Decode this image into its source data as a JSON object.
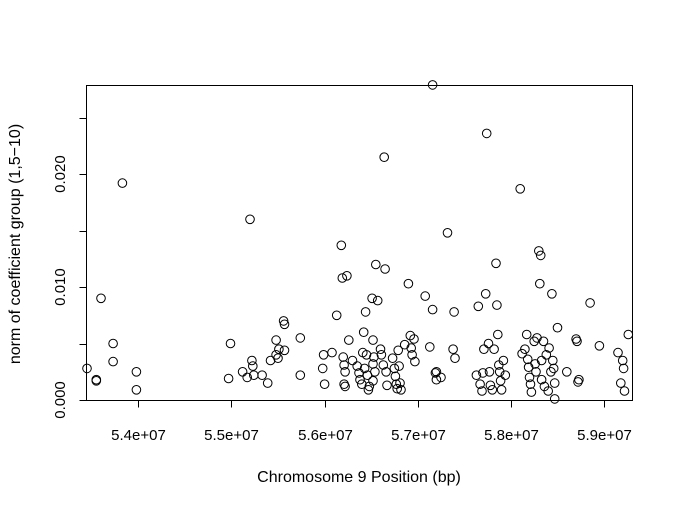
{
  "chart_data": {
    "type": "scatter",
    "title": "",
    "xlabel": "Chromosome 9 Position (bp)",
    "ylabel": "norm of coefficient group (1,5−10)",
    "xlim": [
      53450000,
      59300000
    ],
    "ylim": [
      0.0,
      0.0278
    ],
    "x_ticks": [
      54000000,
      55000000,
      56000000,
      57000000,
      58000000,
      59000000
    ],
    "x_tick_labels": [
      "5.4e+07",
      "5.5e+07",
      "5.6e+07",
      "5.7e+07",
      "5.8e+07",
      "5.9e+07"
    ],
    "y_ticks": [
      0.0,
      0.01,
      0.02
    ],
    "y_tick_labels": [
      "0.000",
      "0.010",
      "0.020"
    ],
    "y_minor_ticks": [
      0.005,
      0.015,
      0.025
    ],
    "grid": false,
    "legend": "none",
    "marker": "open-circle",
    "color": "#000000",
    "points": [
      [
        53450000,
        0.0028
      ],
      [
        53550000,
        0.0018
      ],
      [
        53550000,
        0.0017
      ],
      [
        53600000,
        0.009
      ],
      [
        53730000,
        0.005
      ],
      [
        53730000,
        0.0034
      ],
      [
        53830000,
        0.0192
      ],
      [
        53980000,
        0.0025
      ],
      [
        53980000,
        0.0009
      ],
      [
        54970000,
        0.0019
      ],
      [
        54990000,
        0.005
      ],
      [
        55120000,
        0.0025
      ],
      [
        55170000,
        0.002
      ],
      [
        55200000,
        0.016
      ],
      [
        55220000,
        0.0035
      ],
      [
        55230000,
        0.003
      ],
      [
        55240000,
        0.0022
      ],
      [
        55330000,
        0.0022
      ],
      [
        55390000,
        0.0015
      ],
      [
        55420000,
        0.0035
      ],
      [
        55480000,
        0.0053
      ],
      [
        55480000,
        0.004
      ],
      [
        55510000,
        0.0045
      ],
      [
        55500000,
        0.0037
      ],
      [
        55560000,
        0.007
      ],
      [
        55570000,
        0.0067
      ],
      [
        55570000,
        0.0044
      ],
      [
        55740000,
        0.0055
      ],
      [
        55740000,
        0.0022
      ],
      [
        55980000,
        0.0028
      ],
      [
        55990000,
        0.004
      ],
      [
        56000000,
        0.0014
      ],
      [
        56080000,
        0.0042
      ],
      [
        56130000,
        0.0075
      ],
      [
        56180000,
        0.0137
      ],
      [
        56190000,
        0.0108
      ],
      [
        56200000,
        0.0038
      ],
      [
        56210000,
        0.0031
      ],
      [
        56220000,
        0.0025
      ],
      [
        56210000,
        0.0014
      ],
      [
        56220000,
        0.0012
      ],
      [
        56240000,
        0.011
      ],
      [
        56260000,
        0.0053
      ],
      [
        56300000,
        0.0035
      ],
      [
        56350000,
        0.003
      ],
      [
        56370000,
        0.0024
      ],
      [
        56380000,
        0.0018
      ],
      [
        56400000,
        0.0014
      ],
      [
        56410000,
        0.0042
      ],
      [
        56420000,
        0.006
      ],
      [
        56440000,
        0.0078
      ],
      [
        56450000,
        0.004
      ],
      [
        56430000,
        0.0028
      ],
      [
        56460000,
        0.0022
      ],
      [
        56480000,
        0.0012
      ],
      [
        56470000,
        0.0009
      ],
      [
        56510000,
        0.009
      ],
      [
        56520000,
        0.0053
      ],
      [
        56530000,
        0.0038
      ],
      [
        56520000,
        0.0032
      ],
      [
        56540000,
        0.0025
      ],
      [
        56520000,
        0.0017
      ],
      [
        56550000,
        0.012
      ],
      [
        56570000,
        0.0088
      ],
      [
        56600000,
        0.0045
      ],
      [
        56610000,
        0.004
      ],
      [
        56630000,
        0.0031
      ],
      [
        56640000,
        0.0215
      ],
      [
        56650000,
        0.0116
      ],
      [
        56660000,
        0.0025
      ],
      [
        56670000,
        0.0013
      ],
      [
        56730000,
        0.0037
      ],
      [
        56750000,
        0.0028
      ],
      [
        56760000,
        0.0021
      ],
      [
        56770000,
        0.0014
      ],
      [
        56780000,
        0.001
      ],
      [
        56790000,
        0.0044
      ],
      [
        56800000,
        0.003
      ],
      [
        56810000,
        0.0015
      ],
      [
        56820000,
        0.0009
      ],
      [
        56860000,
        0.0049
      ],
      [
        56900000,
        0.0103
      ],
      [
        56920000,
        0.0057
      ],
      [
        56930000,
        0.0046
      ],
      [
        56940000,
        0.004
      ],
      [
        56960000,
        0.0054
      ],
      [
        56970000,
        0.0034
      ],
      [
        57080000,
        0.0092
      ],
      [
        57130000,
        0.0047
      ],
      [
        57160000,
        0.0279
      ],
      [
        57160000,
        0.008
      ],
      [
        57190000,
        0.0024
      ],
      [
        57200000,
        0.0018
      ],
      [
        57200000,
        0.0025
      ],
      [
        57250000,
        0.002
      ],
      [
        57320000,
        0.0148
      ],
      [
        57380000,
        0.0045
      ],
      [
        57390000,
        0.0078
      ],
      [
        57400000,
        0.0037
      ],
      [
        57630000,
        0.0022
      ],
      [
        57650000,
        0.0083
      ],
      [
        57670000,
        0.0014
      ],
      [
        57690000,
        0.0008
      ],
      [
        57700000,
        0.0024
      ],
      [
        57710000,
        0.0045
      ],
      [
        57730000,
        0.0094
      ],
      [
        57740000,
        0.0236
      ],
      [
        57760000,
        0.005
      ],
      [
        57770000,
        0.0025
      ],
      [
        57780000,
        0.0013
      ],
      [
        57800000,
        0.0009
      ],
      [
        57820000,
        0.0045
      ],
      [
        57840000,
        0.0121
      ],
      [
        57850000,
        0.0084
      ],
      [
        57860000,
        0.0058
      ],
      [
        57870000,
        0.0031
      ],
      [
        57880000,
        0.0025
      ],
      [
        57890000,
        0.0017
      ],
      [
        57900000,
        0.0009
      ],
      [
        57920000,
        0.0035
      ],
      [
        57940000,
        0.0022
      ],
      [
        58100000,
        0.0187
      ],
      [
        58120000,
        0.0041
      ],
      [
        58150000,
        0.0045
      ],
      [
        58170000,
        0.0058
      ],
      [
        58180000,
        0.0036
      ],
      [
        58190000,
        0.0029
      ],
      [
        58200000,
        0.002
      ],
      [
        58210000,
        0.0014
      ],
      [
        58220000,
        0.0007
      ],
      [
        58250000,
        0.0052
      ],
      [
        58260000,
        0.0032
      ],
      [
        58270000,
        0.0025
      ],
      [
        58280000,
        0.0055
      ],
      [
        58300000,
        0.0132
      ],
      [
        58310000,
        0.0103
      ],
      [
        58320000,
        0.0128
      ],
      [
        58330000,
        0.0035
      ],
      [
        58330000,
        0.0018
      ],
      [
        58350000,
        0.0052
      ],
      [
        58360000,
        0.0012
      ],
      [
        58380000,
        0.004
      ],
      [
        58400000,
        0.0008
      ],
      [
        58410000,
        0.0046
      ],
      [
        58430000,
        0.0025
      ],
      [
        58440000,
        0.0094
      ],
      [
        58450000,
        0.0035
      ],
      [
        58460000,
        0.0028
      ],
      [
        58470000,
        0.0015
      ],
      [
        58470000,
        0.0001
      ],
      [
        58500000,
        0.0064
      ],
      [
        58600000,
        0.0025
      ],
      [
        58700000,
        0.0054
      ],
      [
        58710000,
        0.0052
      ],
      [
        58720000,
        0.0016
      ],
      [
        58730000,
        0.0018
      ],
      [
        58850000,
        0.0086
      ],
      [
        58950000,
        0.0048
      ],
      [
        59150000,
        0.0042
      ],
      [
        59180000,
        0.0015
      ],
      [
        59200000,
        0.0035
      ],
      [
        59210000,
        0.0028
      ],
      [
        59220000,
        0.0008
      ],
      [
        59260000,
        0.0058
      ]
    ]
  }
}
